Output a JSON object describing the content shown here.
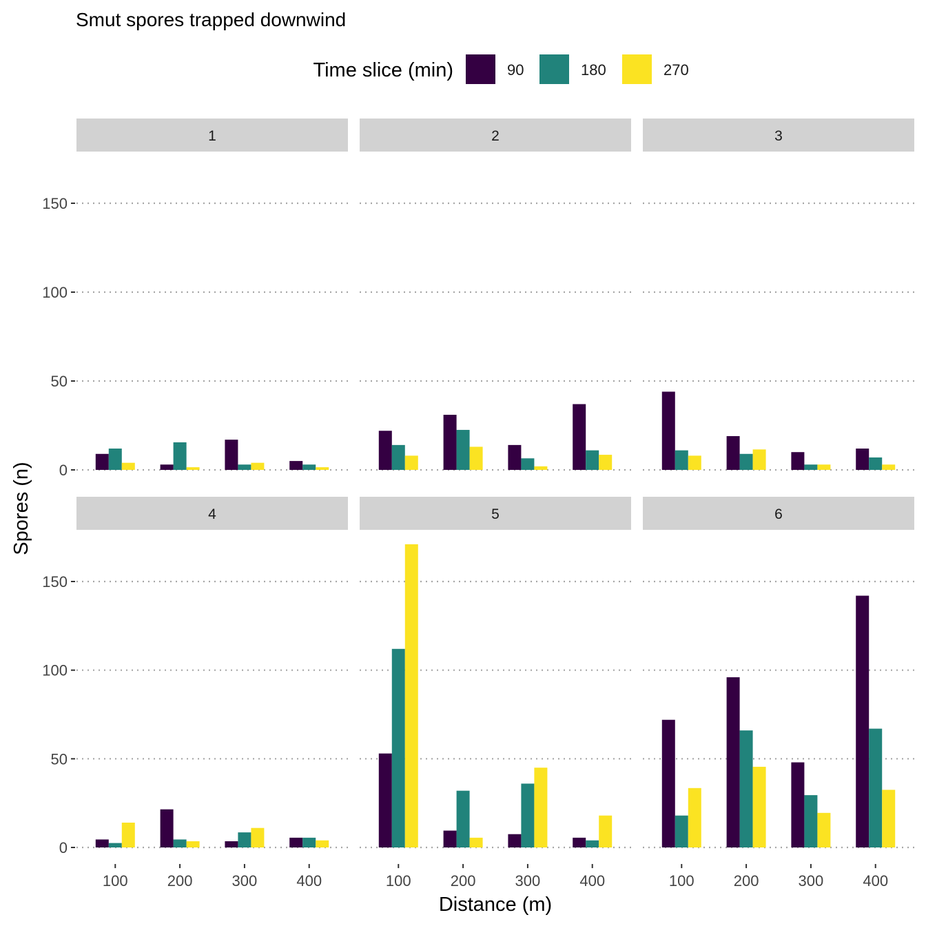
{
  "chart_data": {
    "type": "bar",
    "title": "Smut spores trapped downwind",
    "xlabel": "Distance (m)",
    "ylabel": "Spores (n)",
    "ylim": [
      0,
      170
    ],
    "yticks": [
      0,
      50,
      100,
      150
    ],
    "grid": "horizontal dotted",
    "legend": {
      "title": "Time slice (min)",
      "placement": "top",
      "entries": [
        "90",
        "180",
        "270"
      ]
    },
    "categories": [
      "100",
      "200",
      "300",
      "400"
    ],
    "series_colors": [
      "#340042",
      "#21837b",
      "#fbe322"
    ],
    "facets": [
      {
        "label": "1",
        "series": [
          {
            "name": "90",
            "values": [
              9,
              3,
              17,
              5
            ]
          },
          {
            "name": "180",
            "values": [
              12,
              15.5,
              3,
              3
            ]
          },
          {
            "name": "270",
            "values": [
              4,
              1.5,
              4,
              1.5
            ]
          }
        ]
      },
      {
        "label": "2",
        "series": [
          {
            "name": "90",
            "values": [
              22,
              31,
              14,
              37
            ]
          },
          {
            "name": "180",
            "values": [
              14,
              22.5,
              6.5,
              11
            ]
          },
          {
            "name": "270",
            "values": [
              8,
              13,
              2,
              8.5
            ]
          }
        ]
      },
      {
        "label": "3",
        "series": [
          {
            "name": "90",
            "values": [
              44,
              19,
              10,
              12
            ]
          },
          {
            "name": "180",
            "values": [
              11,
              9,
              3,
              7
            ]
          },
          {
            "name": "270",
            "values": [
              8,
              11.5,
              3,
              3
            ]
          }
        ]
      },
      {
        "label": "4",
        "series": [
          {
            "name": "90",
            "values": [
              4.5,
              21.5,
              3.5,
              5.5
            ]
          },
          {
            "name": "180",
            "values": [
              2.5,
              4.5,
              8.5,
              5.5
            ]
          },
          {
            "name": "270",
            "values": [
              14,
              3.5,
              11,
              4
            ]
          }
        ]
      },
      {
        "label": "5",
        "series": [
          {
            "name": "90",
            "values": [
              53,
              9.5,
              7.5,
              5.5
            ]
          },
          {
            "name": "180",
            "values": [
              112,
              32,
              36,
              4
            ]
          },
          {
            "name": "270",
            "values": [
              171,
              5.5,
              45,
              18
            ]
          }
        ]
      },
      {
        "label": "6",
        "series": [
          {
            "name": "90",
            "values": [
              72,
              96,
              48,
              142
            ]
          },
          {
            "name": "180",
            "values": [
              18,
              66,
              29.5,
              67
            ]
          },
          {
            "name": "270",
            "values": [
              33.5,
              45.5,
              19.5,
              32.5
            ]
          }
        ]
      }
    ]
  }
}
